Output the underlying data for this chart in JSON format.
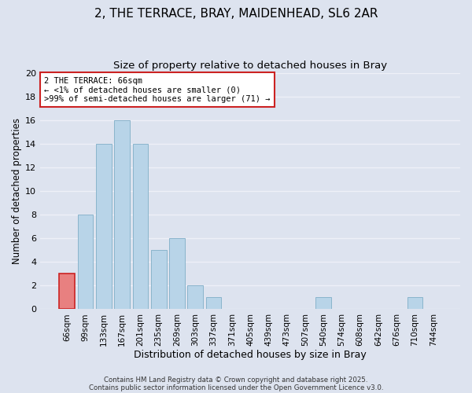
{
  "title1": "2, THE TERRACE, BRAY, MAIDENHEAD, SL6 2AR",
  "title2": "Size of property relative to detached houses in Bray",
  "xlabel": "Distribution of detached houses by size in Bray",
  "ylabel": "Number of detached properties",
  "bar_labels": [
    "66sqm",
    "99sqm",
    "133sqm",
    "167sqm",
    "201sqm",
    "235sqm",
    "269sqm",
    "303sqm",
    "337sqm",
    "371sqm",
    "405sqm",
    "439sqm",
    "473sqm",
    "507sqm",
    "540sqm",
    "574sqm",
    "608sqm",
    "642sqm",
    "676sqm",
    "710sqm",
    "744sqm"
  ],
  "bar_heights": [
    3,
    8,
    14,
    16,
    14,
    5,
    6,
    2,
    1,
    0,
    0,
    0,
    0,
    0,
    1,
    0,
    0,
    0,
    0,
    1,
    0
  ],
  "highlight_index": 0,
  "highlight_color": "#e88080",
  "bar_color": "#b8d4e8",
  "bar_edge_color": "#8ab4cc",
  "highlight_edge_color": "#cc2222",
  "annotation_box_text": "2 THE TERRACE: 66sqm\n← <1% of detached houses are smaller (0)\n>99% of semi-detached houses are larger (71) →",
  "annotation_box_edge_color": "#cc2222",
  "annotation_box_facecolor": "#ffffff",
  "ylim": [
    0,
    20
  ],
  "yticks": [
    0,
    2,
    4,
    6,
    8,
    10,
    12,
    14,
    16,
    18,
    20
  ],
  "background_color": "#dde3ef",
  "grid_color": "#eef0f8",
  "footnote1": "Contains HM Land Registry data © Crown copyright and database right 2025.",
  "footnote2": "Contains public sector information licensed under the Open Government Licence v3.0.",
  "title1_fontsize": 11,
  "title2_fontsize": 9.5,
  "xlabel_fontsize": 9,
  "ylabel_fontsize": 8.5,
  "annot_fontsize": 7.5,
  "tick_fontsize": 7.5,
  "ytick_fontsize": 8
}
